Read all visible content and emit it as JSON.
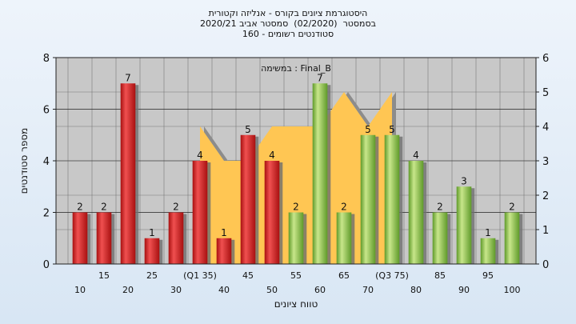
{
  "title_lines": [
    "היסטוגרמת ציונים בקורס - אנליזה וקטורית",
    "בסמסטר  (02/2020)  סמסטר אביב 2020/21",
    "סטודנטים רשומים - 160"
  ],
  "chart_data": {
    "type": "bar",
    "inner_label": "במשימה : Final_B",
    "xlabel": "טווח ציונים",
    "ylabel": "מספר סטודנטים",
    "ylim": [
      0,
      8
    ],
    "y_ticks": [
      0,
      2,
      4,
      6,
      8
    ],
    "y2lim": [
      0,
      6
    ],
    "y2_ticks": [
      0,
      1,
      2,
      3,
      4,
      5,
      6
    ],
    "grid": true,
    "categories": [
      "10",
      "15",
      "20",
      "25",
      "30",
      "(Q1 35)",
      "40",
      "45",
      "50",
      "55",
      "60",
      "65",
      "70",
      "(Q3 75)",
      "80",
      "85",
      "90",
      "95",
      "100"
    ],
    "values": [
      2,
      2,
      7,
      1,
      2,
      4,
      1,
      5,
      4,
      2,
      7,
      2,
      5,
      5,
      4,
      2,
      3,
      1,
      2
    ],
    "bar_colors": [
      "red",
      "red",
      "red",
      "red",
      "red",
      "red",
      "red",
      "red",
      "red",
      "green",
      "green",
      "green",
      "green",
      "green",
      "green",
      "green",
      "green",
      "green",
      "green"
    ],
    "area_values": [
      null,
      null,
      null,
      null,
      null,
      4,
      3,
      3,
      4,
      4,
      4,
      5,
      4,
      5,
      null,
      null,
      null,
      null,
      null
    ],
    "colors": {
      "red": "#d8282b",
      "green": "#8fc24a",
      "area": "#ffc653",
      "shadow": "#8c8c8c",
      "plot_bg": "#c8c8c8"
    }
  }
}
